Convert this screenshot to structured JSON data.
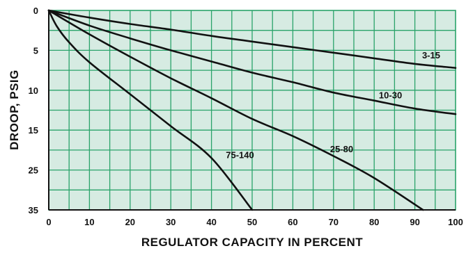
{
  "chart_data": {
    "type": "line",
    "title": "",
    "xlabel": "REGULATOR CAPACITY IN PERCENT",
    "ylabel": "DROOP, PSIG",
    "xlim": [
      0,
      100
    ],
    "x_ticks": [
      "0",
      "10",
      "20",
      "30",
      "40",
      "50",
      "60",
      "70",
      "80",
      "90",
      "100"
    ],
    "y_ticks": [
      "0",
      "5",
      "10",
      "15",
      "25",
      "35"
    ],
    "y_tick_rows": [
      0,
      2,
      4,
      6,
      8,
      10
    ],
    "y_scale": "non-uniform: gridline rows 0-10, labels 0,5,10,15,25,35",
    "grid": true,
    "series": [
      {
        "name": "3-15",
        "x": [
          0,
          10,
          20,
          30,
          40,
          50,
          60,
          70,
          80,
          90,
          100
        ],
        "y": [
          0,
          0.9,
          1.7,
          2.4,
          3.2,
          3.9,
          4.6,
          5.3,
          6.0,
          6.7,
          7.2
        ]
      },
      {
        "name": "10-30",
        "x": [
          0,
          10,
          20,
          30,
          40,
          50,
          60,
          70,
          80,
          90,
          100
        ],
        "y": [
          0,
          1.9,
          3.5,
          5.0,
          6.4,
          7.8,
          9.0,
          10.3,
          11.3,
          12.3,
          13.0
        ]
      },
      {
        "name": "25-80",
        "x": [
          0,
          10,
          20,
          30,
          40,
          50,
          60,
          70,
          80,
          92
        ],
        "y": [
          0,
          3.0,
          5.8,
          8.5,
          11.0,
          13.6,
          16.5,
          21.5,
          27.0,
          35.0
        ]
      },
      {
        "name": "75-140",
        "x": [
          0,
          2,
          5,
          10,
          20,
          30,
          40,
          50
        ],
        "y": [
          0,
          2.0,
          4.0,
          6.5,
          10.5,
          14.5,
          22.0,
          35.0
        ]
      }
    ],
    "series_labels": [
      {
        "text": "3-15",
        "x": 94,
        "y": 6.0
      },
      {
        "text": "10-30",
        "x": 84,
        "y": 11.0
      },
      {
        "text": "25-80",
        "x": 72,
        "y": 20.5
      },
      {
        "text": "75-140",
        "x": 47,
        "y": 22.0
      }
    ]
  }
}
